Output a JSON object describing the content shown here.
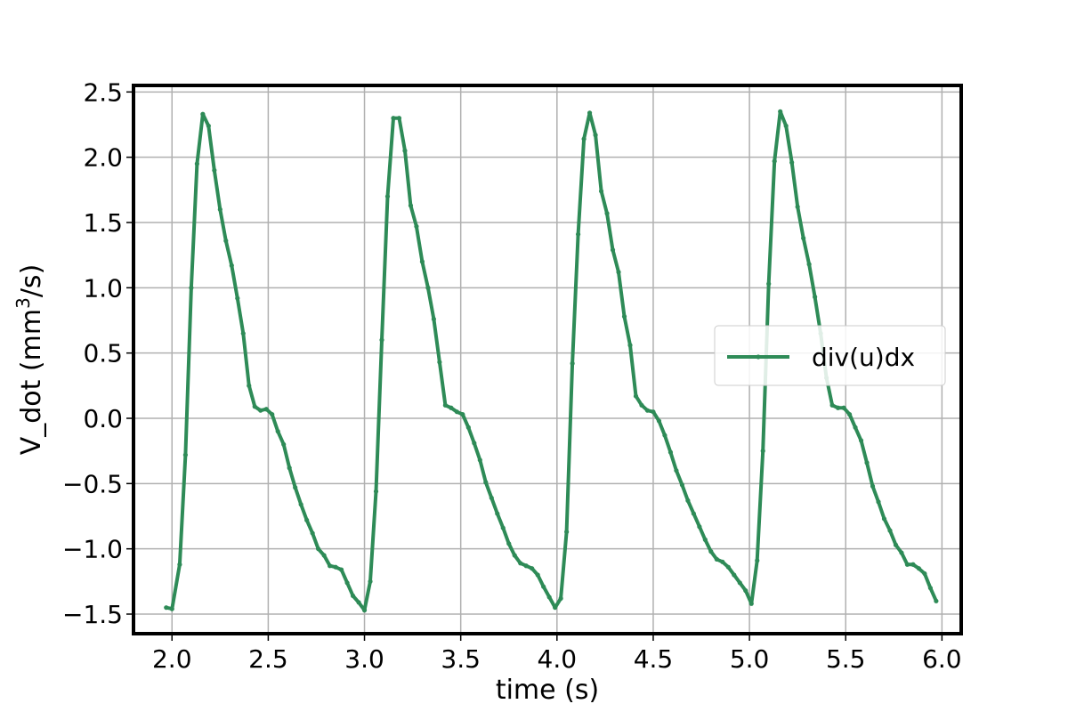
{
  "chart_data": {
    "type": "line",
    "title": "",
    "xlabel": "time (s)",
    "ylabel_main": "V_dot (mm",
    "ylabel_sup": "3",
    "ylabel_tail": "/s)",
    "xlim": [
      1.8,
      6.1
    ],
    "ylim": [
      -1.65,
      2.55
    ],
    "xticks": [
      2.0,
      2.5,
      3.0,
      3.5,
      4.0,
      4.5,
      5.0,
      5.5,
      6.0
    ],
    "xtick_labels": [
      "2.0",
      "2.5",
      "3.0",
      "3.5",
      "4.0",
      "4.5",
      "5.0",
      "5.5",
      "6.0"
    ],
    "yticks": [
      -1.5,
      -1.0,
      -0.5,
      0.0,
      0.5,
      1.0,
      1.5,
      2.0,
      2.5
    ],
    "ytick_labels": [
      "−1.5",
      "−1.0",
      "−0.5",
      "0.0",
      "0.5",
      "1.0",
      "1.5",
      "2.0",
      "2.5"
    ],
    "grid": true,
    "legend_position": "center-right",
    "series": [
      {
        "name": "div(u)dx",
        "color": "#2e8b57",
        "x": [
          1.97,
          2.0,
          2.04,
          2.07,
          2.1,
          2.13,
          2.16,
          2.19,
          2.22,
          2.25,
          2.28,
          2.31,
          2.34,
          2.37,
          2.4,
          2.43,
          2.46,
          2.49,
          2.52,
          2.55,
          2.58,
          2.61,
          2.64,
          2.67,
          2.7,
          2.73,
          2.76,
          2.79,
          2.82,
          2.85,
          2.88,
          2.91,
          2.94,
          2.97,
          3.0,
          3.03,
          3.06,
          3.09,
          3.12,
          3.15,
          3.18,
          3.21,
          3.24,
          3.27,
          3.3,
          3.33,
          3.36,
          3.39,
          3.42,
          3.45,
          3.48,
          3.51,
          3.54,
          3.57,
          3.6,
          3.63,
          3.66,
          3.69,
          3.72,
          3.75,
          3.78,
          3.81,
          3.84,
          3.87,
          3.9,
          3.93,
          3.96,
          3.99,
          4.02,
          4.05,
          4.08,
          4.11,
          4.14,
          4.17,
          4.2,
          4.23,
          4.26,
          4.29,
          4.32,
          4.35,
          4.38,
          4.41,
          4.44,
          4.47,
          4.5,
          4.53,
          4.56,
          4.59,
          4.62,
          4.65,
          4.68,
          4.71,
          4.74,
          4.77,
          4.8,
          4.83,
          4.86,
          4.89,
          4.92,
          4.95,
          4.98,
          5.01,
          5.04,
          5.07,
          5.1,
          5.13,
          5.16,
          5.19,
          5.22,
          5.25,
          5.28,
          5.31,
          5.34,
          5.37,
          5.4,
          5.43,
          5.46,
          5.49,
          5.52,
          5.55,
          5.58,
          5.61,
          5.64,
          5.67,
          5.7,
          5.73,
          5.76,
          5.79,
          5.82,
          5.85,
          5.88,
          5.91,
          5.94,
          5.97
        ],
        "y": [
          -1.45,
          -1.46,
          -1.12,
          -0.28,
          1.0,
          1.95,
          2.33,
          2.24,
          1.9,
          1.6,
          1.36,
          1.17,
          0.92,
          0.65,
          0.25,
          0.09,
          0.06,
          0.07,
          0.03,
          -0.1,
          -0.2,
          -0.38,
          -0.53,
          -0.66,
          -0.78,
          -0.88,
          -1.0,
          -1.05,
          -1.13,
          -1.14,
          -1.16,
          -1.26,
          -1.36,
          -1.41,
          -1.47,
          -1.25,
          -0.56,
          0.6,
          1.7,
          2.3,
          2.3,
          2.05,
          1.63,
          1.47,
          1.2,
          1.0,
          0.76,
          0.43,
          0.1,
          0.08,
          0.05,
          0.03,
          -0.07,
          -0.19,
          -0.32,
          -0.49,
          -0.61,
          -0.73,
          -0.84,
          -0.96,
          -1.05,
          -1.11,
          -1.13,
          -1.15,
          -1.2,
          -1.29,
          -1.37,
          -1.45,
          -1.38,
          -0.87,
          0.42,
          1.41,
          2.14,
          2.34,
          2.17,
          1.74,
          1.57,
          1.29,
          1.12,
          0.78,
          0.56,
          0.17,
          0.1,
          0.06,
          0.05,
          -0.02,
          -0.13,
          -0.26,
          -0.4,
          -0.51,
          -0.63,
          -0.73,
          -0.83,
          -0.93,
          -1.02,
          -1.08,
          -1.1,
          -1.14,
          -1.2,
          -1.26,
          -1.32,
          -1.42,
          -1.09,
          -0.25,
          1.03,
          1.97,
          2.35,
          2.24,
          1.96,
          1.62,
          1.38,
          1.18,
          0.93,
          0.65,
          0.31,
          0.1,
          0.08,
          0.08,
          0.03,
          -0.07,
          -0.17,
          -0.34,
          -0.52,
          -0.64,
          -0.77,
          -0.86,
          -0.97,
          -1.03,
          -1.12,
          -1.12,
          -1.15,
          -1.19,
          -1.3,
          -1.4
        ]
      }
    ]
  }
}
